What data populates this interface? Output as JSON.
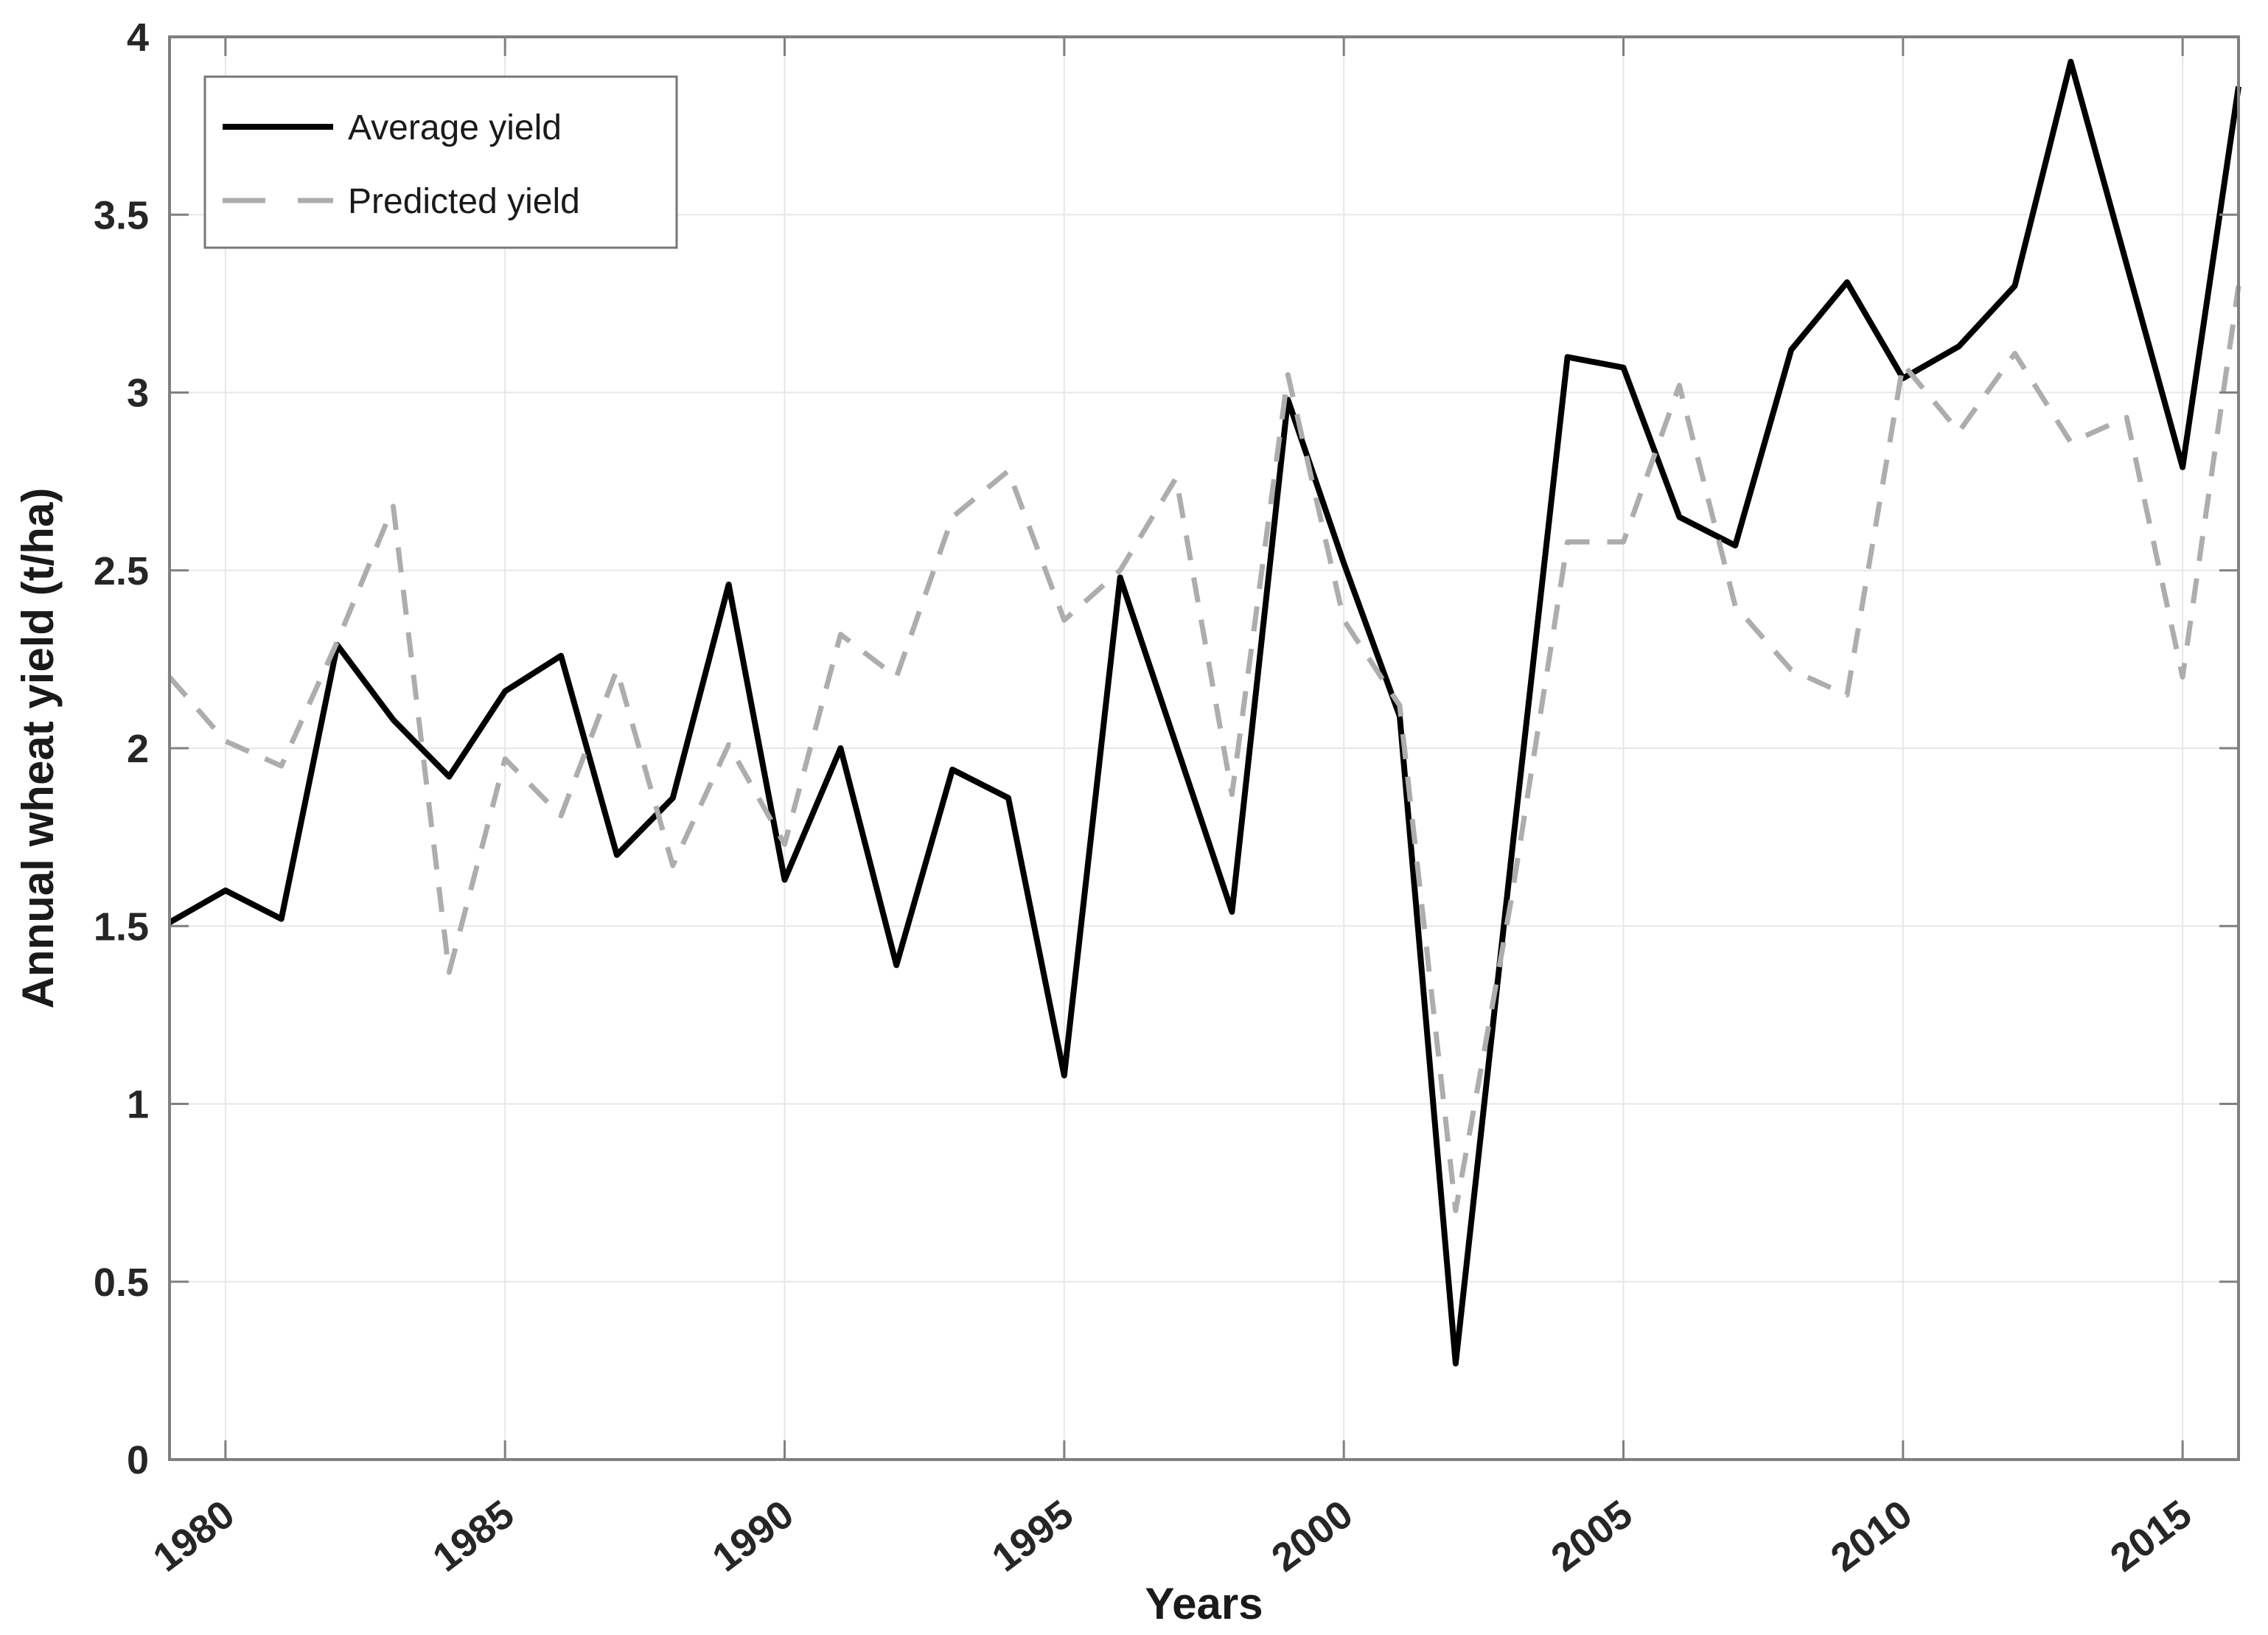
{
  "figure": {
    "background": "#ffffff"
  },
  "axes": {
    "x_label": "Years",
    "y_label": "Annual wheat yield (t/ha)",
    "x_tick_labels": [
      "1980",
      "1985",
      "1990",
      "1995",
      "2000",
      "2005",
      "2010",
      "2015"
    ],
    "y_tick_labels": [
      "0",
      "0.5",
      "1",
      "1.5",
      "2",
      "2.5",
      "3",
      "3.5",
      "4"
    ]
  },
  "legend": {
    "items": [
      {
        "label": "Average yield",
        "style": "solid",
        "color": "#000000"
      },
      {
        "label": "Predicted yield",
        "style": "dashed",
        "color": "#adadad"
      }
    ]
  },
  "colors": {
    "average_line": "#000000",
    "predicted_line": "#adadad",
    "grid": "#e7e7e7",
    "spine": "#808080",
    "tick": "#808080",
    "text": "#262626",
    "legend_border": "#777777",
    "background": "#ffffff"
  },
  "chart_data": {
    "type": "line",
    "title": "",
    "xlabel": "Years",
    "ylabel": "Annual wheat yield (t/ha)",
    "x": [
      1979,
      1980,
      1981,
      1982,
      1983,
      1984,
      1985,
      1986,
      1987,
      1988,
      1989,
      1990,
      1991,
      1992,
      1993,
      1994,
      1995,
      1996,
      1997,
      1998,
      1999,
      2000,
      2001,
      2002,
      2003,
      2004,
      2005,
      2006,
      2007,
      2008,
      2009,
      2010,
      2011,
      2012,
      2013,
      2014,
      2015,
      2016
    ],
    "series": [
      {
        "name": "Average yield",
        "style": "solid",
        "color": "#000000",
        "values": [
          1.51,
          1.6,
          1.52,
          2.29,
          2.08,
          1.92,
          2.16,
          2.26,
          1.7,
          1.86,
          2.46,
          1.63,
          2.0,
          1.39,
          1.94,
          1.86,
          1.08,
          2.48,
          2.01,
          1.54,
          2.98,
          2.52,
          2.09,
          0.27,
          1.7,
          3.1,
          3.07,
          2.65,
          2.57,
          3.12,
          3.31,
          3.04,
          3.13,
          3.3,
          3.93,
          3.36,
          2.79,
          3.86
        ]
      },
      {
        "name": "Predicted yield",
        "style": "dashed",
        "color": "#adadad",
        "values": [
          2.2,
          2.02,
          1.95,
          2.3,
          2.68,
          1.37,
          1.97,
          1.81,
          2.22,
          1.67,
          2.01,
          1.73,
          2.32,
          2.2,
          2.65,
          2.78,
          2.36,
          2.5,
          2.76,
          1.87,
          3.05,
          2.36,
          2.12,
          0.7,
          1.58,
          2.58,
          2.58,
          3.02,
          2.4,
          2.22,
          2.15,
          3.08,
          2.89,
          3.11,
          2.86,
          2.93,
          2.2,
          3.3
        ]
      }
    ],
    "xlim": [
      1979,
      2016
    ],
    "ylim": [
      0,
      4
    ],
    "x_ticks": [
      1980,
      1985,
      1990,
      1995,
      2000,
      2005,
      2010,
      2015
    ],
    "y_ticks": [
      0,
      0.5,
      1,
      1.5,
      2,
      2.5,
      3,
      3.5,
      4
    ],
    "grid": true,
    "legend_position": "top-left"
  }
}
